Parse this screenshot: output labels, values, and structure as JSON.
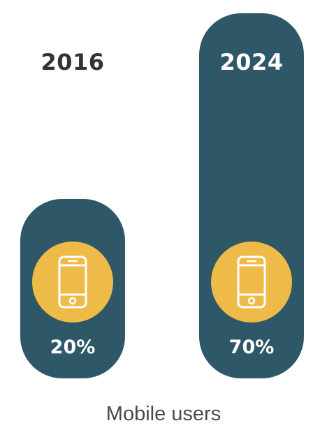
{
  "colors": {
    "bar": "#2e5767",
    "circle": "#efbb48",
    "year_label_outside": "#333333",
    "year_label_inside": "#ffffff",
    "percent_label": "#ffffff",
    "caption": "#4a4a4a"
  },
  "icon": "smartphone-icon",
  "caption": "Mobile users",
  "chart_data": {
    "type": "bar",
    "categories": [
      "2016",
      "2024"
    ],
    "values": [
      20,
      70
    ],
    "value_labels": [
      "20%",
      "70%"
    ],
    "unit": "%",
    "title": "",
    "xlabel": "Mobile users",
    "ylabel": "",
    "ylim": [
      0,
      70
    ],
    "grid": false,
    "legend": "none"
  }
}
